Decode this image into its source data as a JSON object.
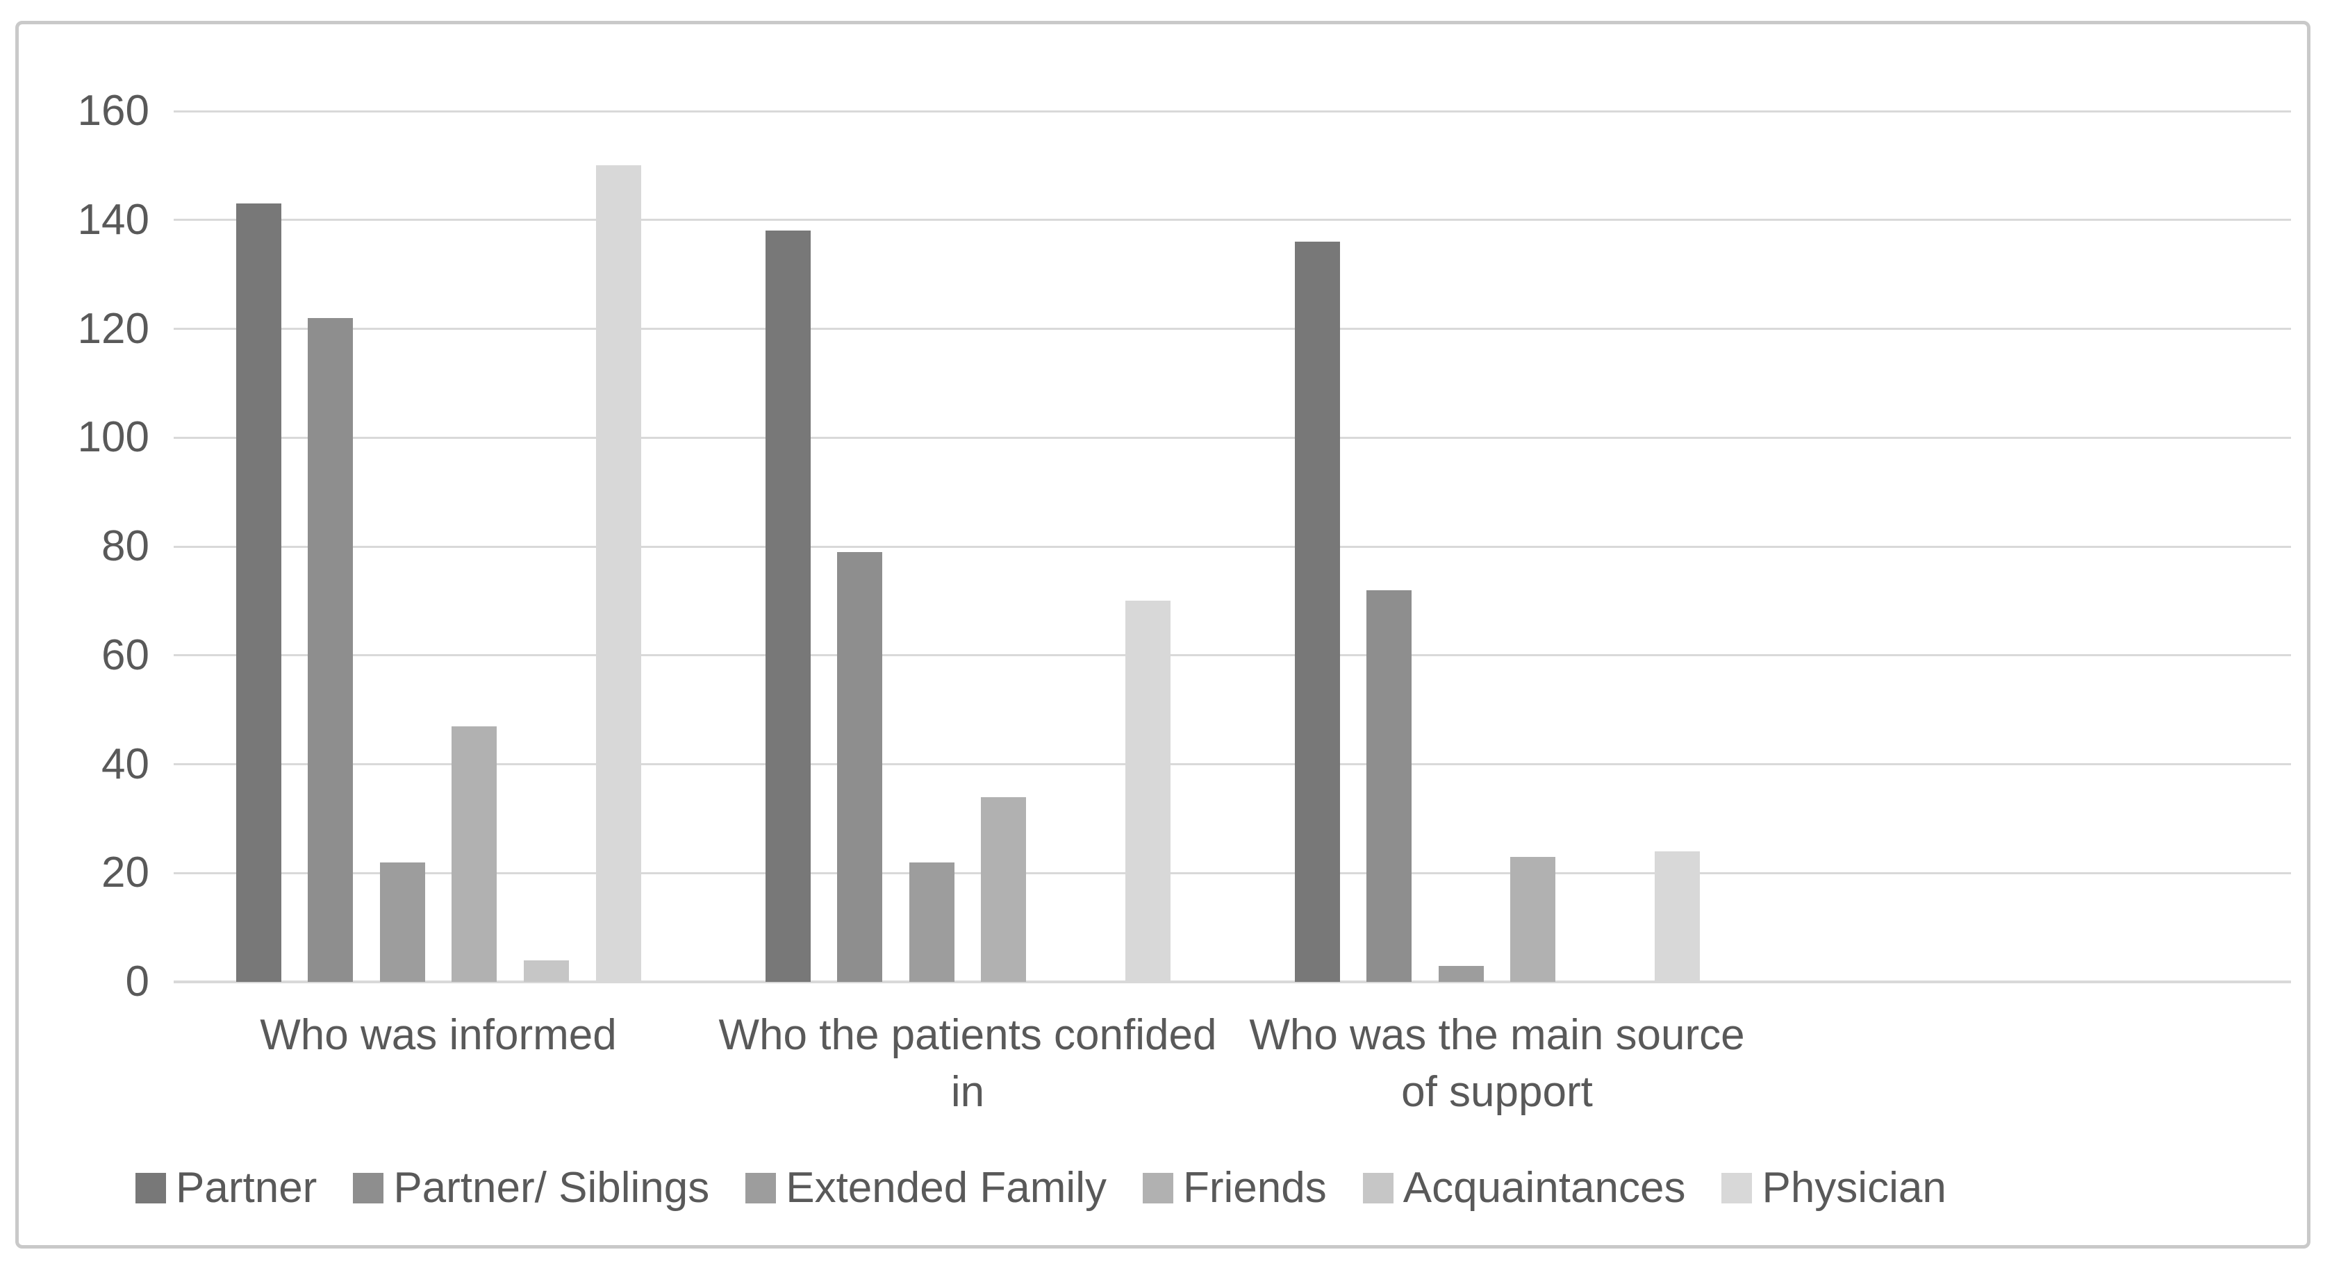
{
  "figure": {
    "background_color": "#ffffff",
    "border_color": "#c9c9c9",
    "text_color": "#595959",
    "gridline_color": "#d9d9d9"
  },
  "chart_data": {
    "type": "bar",
    "title": "",
    "xlabel": "",
    "ylabel": "",
    "categories": [
      "Who was informed",
      "Who the patients confided\nin",
      "Who was the main source\nof support"
    ],
    "series": [
      {
        "name": "Partner",
        "color": "#787878",
        "values": [
          143,
          138,
          136
        ]
      },
      {
        "name": "Partner/ Siblings",
        "color": "#8e8e8e",
        "values": [
          122,
          79,
          72
        ]
      },
      {
        "name": "Extended Family",
        "color": "#9d9d9d",
        "values": [
          22,
          22,
          3
        ]
      },
      {
        "name": "Friends",
        "color": "#b1b1b1",
        "values": [
          47,
          34,
          23
        ]
      },
      {
        "name": "Acquaintances",
        "color": "#c6c6c6",
        "values": [
          4,
          0,
          0
        ]
      },
      {
        "name": "Physician",
        "color": "#d8d8d8",
        "values": [
          150,
          70,
          24
        ]
      }
    ],
    "ylim": [
      0,
      160
    ],
    "ytick_step": 20,
    "yticks": [
      0,
      20,
      40,
      60,
      80,
      100,
      120,
      140,
      160
    ],
    "grid": true,
    "legend_position": "bottom",
    "category_slots": 4
  }
}
